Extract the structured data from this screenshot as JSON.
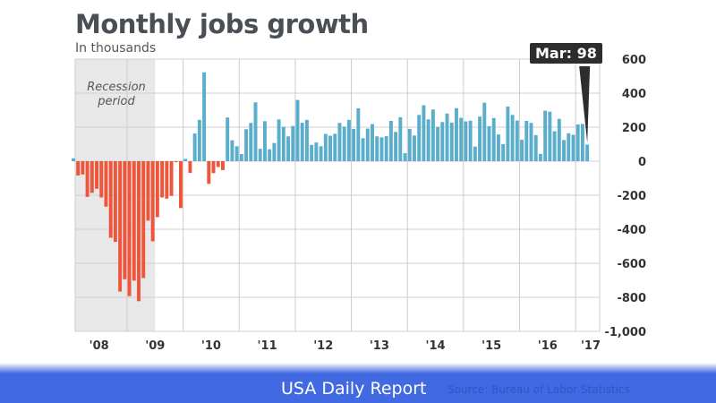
{
  "chart_data": {
    "type": "bar",
    "title": "Monthly jobs growth",
    "subtitle": "In thousands",
    "ylim": [
      -1000,
      600
    ],
    "yticks": [
      "600",
      "400",
      "200",
      "0",
      "-200",
      "-400",
      "-600",
      "-800",
      "-1,000"
    ],
    "ytick_values": [
      600,
      400,
      200,
      0,
      -200,
      -400,
      -600,
      -800,
      -1000
    ],
    "xtick_labels": [
      "'08",
      "'09",
      "'10",
      "'11",
      "'12",
      "'13",
      "'14",
      "'15",
      "'16",
      "'17"
    ],
    "start": "2008-01",
    "end": "2017-03",
    "grid": true,
    "recession_label": "Recession period",
    "recession": [
      "2008-01",
      "2009-06"
    ],
    "annotation": "Mar: 98",
    "colors": {
      "positive": "#5aaecb",
      "negative": "#f0553c",
      "recession": "#e8e8e8"
    },
    "values": [
      17,
      -84,
      -78,
      -210,
      -186,
      -162,
      -213,
      -267,
      -450,
      -474,
      -766,
      -694,
      -793,
      -702,
      -823,
      -687,
      -349,
      -471,
      -329,
      -213,
      -220,
      -204,
      -2,
      -275,
      14,
      -69,
      163,
      243,
      522,
      -133,
      -70,
      -34,
      -52,
      257,
      123,
      88,
      42,
      188,
      225,
      346,
      73,
      235,
      70,
      107,
      246,
      202,
      146,
      207,
      360,
      226,
      243,
      96,
      110,
      88,
      160,
      150,
      161,
      225,
      203,
      243,
      190,
      311,
      135,
      192,
      218,
      146,
      140,
      147,
      237,
      172,
      258,
      47,
      190,
      151,
      272,
      329,
      246,
      304,
      202,
      230,
      280,
      227,
      312,
      255,
      234,
      238,
      86,
      262,
      344,
      206,
      254,
      157,
      100,
      321,
      272,
      239,
      126,
      237,
      225,
      153,
      43,
      297,
      291,
      176,
      249,
      124,
      164,
      155,
      216,
      219,
      98
    ]
  },
  "footer": {
    "brand": "USA Daily Report",
    "source": "Source: Bureau of Labor Statistics"
  }
}
